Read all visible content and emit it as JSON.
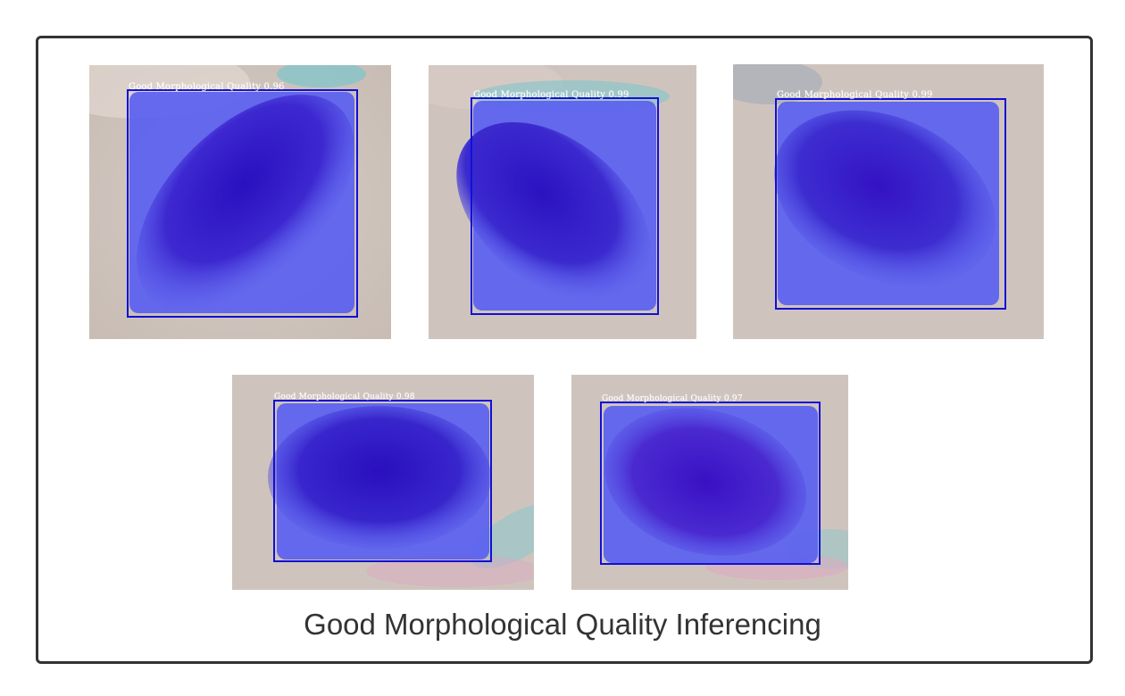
{
  "caption": "Good Morphological Quality Inferencing",
  "colors": {
    "background": "#ffffff",
    "frame_border": "#333333",
    "tissue": "#cfc4bd",
    "mask": "#5a5ff0",
    "nucleus": "#3a1fc8",
    "box_outline": "#1010d8",
    "label_text": "#ffffff"
  },
  "detections": [
    {
      "label": "Good Morphological Quality 0.96"
    },
    {
      "label": "Good Morphological Quality 0.99"
    },
    {
      "label": "Good Morphological Quality 0.99"
    },
    {
      "label": "Good Morphological Quality 0.98"
    },
    {
      "label": "Good Morphological Quality 0.97"
    }
  ]
}
